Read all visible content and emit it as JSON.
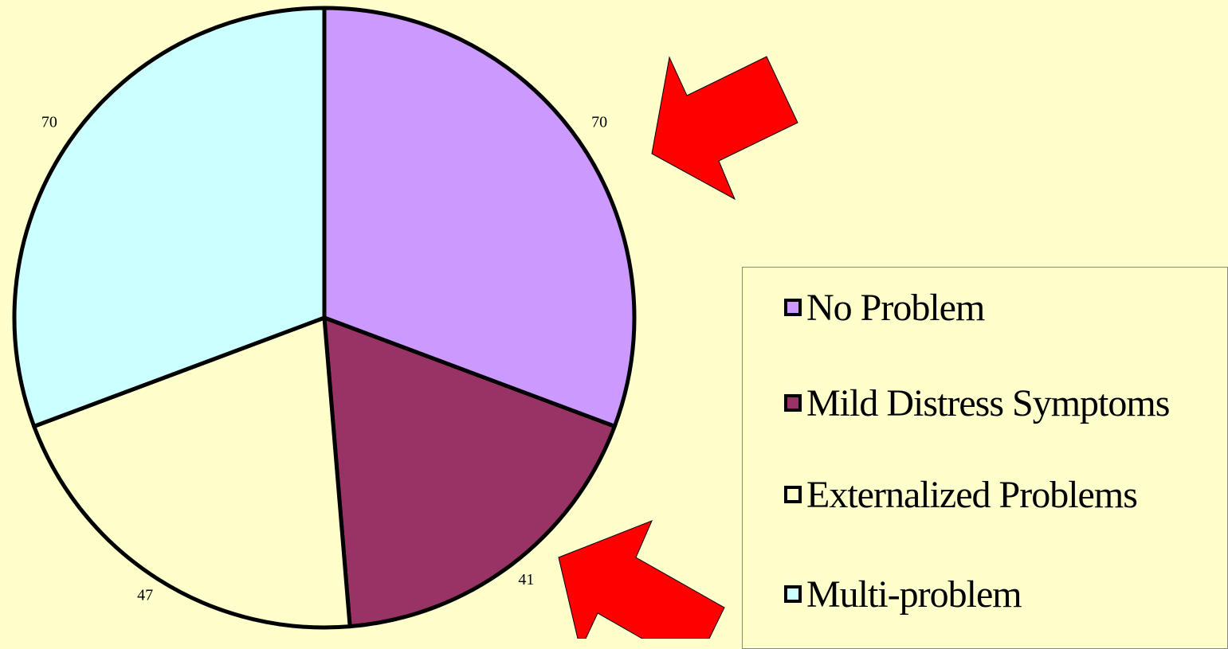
{
  "chart_data": {
    "type": "pie",
    "slices": [
      {
        "label": "No Problem",
        "value": 70,
        "color": "#CC99FF"
      },
      {
        "label": "Mild Distress Symptoms",
        "value": 41,
        "color": "#993366"
      },
      {
        "label": "Externalized Problems",
        "value": 47,
        "color": "#FFFFCC"
      },
      {
        "label": "Multi-problem",
        "value": 70,
        "color": "#CCFFFF"
      }
    ],
    "start_angle": "12 o'clock, clockwise",
    "legend_placement": "right"
  },
  "legend": {
    "items": [
      {
        "label": "No Problem",
        "color": "#CC99FF"
      },
      {
        "label": "Mild Distress Symptoms",
        "color": "#993366"
      },
      {
        "label": "Externalized Problems",
        "color": "#FFFFCC"
      },
      {
        "label": "Multi-problem",
        "color": "#CCFFFF"
      }
    ]
  },
  "annotations": [
    {
      "icon": "red-arrow-icon",
      "points_to": "No Problem",
      "color": "#FF0000"
    },
    {
      "icon": "red-arrow-icon",
      "points_to": "Mild Distress Symptoms",
      "color": "#FF0000"
    }
  ],
  "background_color": "#FFFFCC"
}
